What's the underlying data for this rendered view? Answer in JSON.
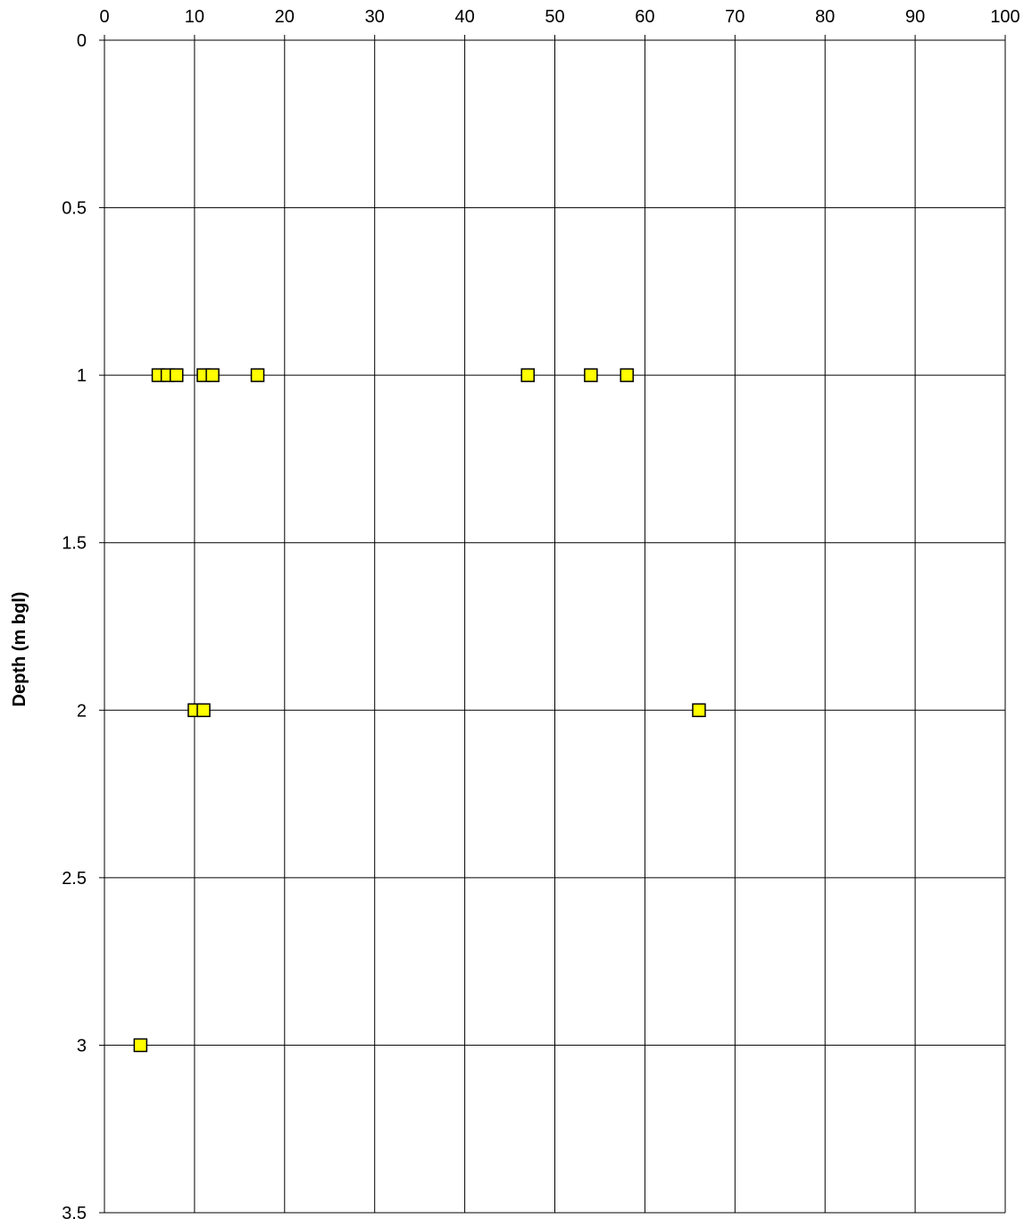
{
  "colors": {
    "background": "#ffffff",
    "grid": "#000000",
    "marker_fill": "#ffff00",
    "marker_stroke": "#000000"
  },
  "chart_data": {
    "type": "scatter",
    "title": "",
    "xlabel": "",
    "ylabel": "Depth (m bgl)",
    "xlim": [
      0,
      100
    ],
    "ylim": [
      0,
      3.5
    ],
    "y_inverted": true,
    "x_axis_position": "top",
    "grid": true,
    "legend": "none",
    "x_ticks": [
      "0",
      "10",
      "20",
      "30",
      "40",
      "50",
      "60",
      "70",
      "80",
      "90",
      "100"
    ],
    "y_ticks": [
      "0",
      "0.5",
      "1",
      "1.5",
      "2",
      "2.5",
      "3",
      "3.5"
    ],
    "marker": "square",
    "series": [
      {
        "points": [
          {
            "x": 6,
            "y": 1
          },
          {
            "x": 7,
            "y": 1
          },
          {
            "x": 8,
            "y": 1
          },
          {
            "x": 11,
            "y": 1
          },
          {
            "x": 12,
            "y": 1
          },
          {
            "x": 17,
            "y": 1
          },
          {
            "x": 47,
            "y": 1
          },
          {
            "x": 54,
            "y": 1
          },
          {
            "x": 58,
            "y": 1
          },
          {
            "x": 10,
            "y": 2
          },
          {
            "x": 11,
            "y": 2
          },
          {
            "x": 66,
            "y": 2
          },
          {
            "x": 4,
            "y": 3
          }
        ]
      }
    ]
  }
}
